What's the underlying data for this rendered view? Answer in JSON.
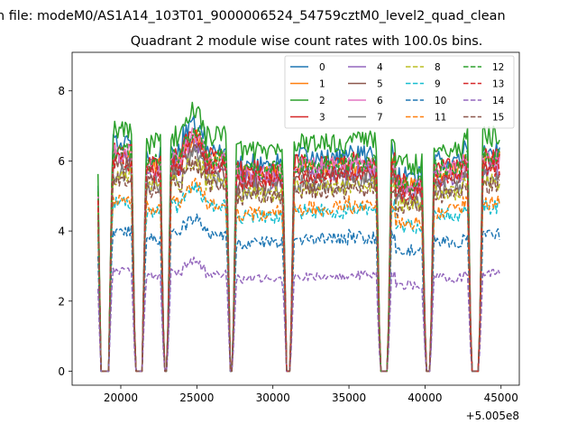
{
  "page": {
    "supertitle": "n file: modeM0/AS1A14_103T01_9000006524_54759cztM0_level2_quad_clean"
  },
  "chart_data": {
    "type": "line",
    "title": "Quadrant 2 module wise count rates with 100.0s bins.",
    "xlabel": "",
    "ylabel": "",
    "x_offset_label": "+5.005e8",
    "xlim": [
      16800,
      46200
    ],
    "ylim": [
      -0.4,
      9.1
    ],
    "x_ticks": [
      20000,
      25000,
      30000,
      35000,
      40000,
      45000
    ],
    "x_tick_labels": [
      "20000",
      "25000",
      "30000",
      "35000",
      "40000",
      "45000"
    ],
    "y_ticks": [
      0,
      2,
      4,
      6,
      8
    ],
    "y_tick_labels": [
      "0",
      "2",
      "4",
      "6",
      "8"
    ],
    "legend_position": "top-right",
    "legend_columns": 4,
    "x_start": 18500,
    "x_end": 44900,
    "bin": 100,
    "gaps": [
      [
        18700,
        19200
      ],
      [
        20950,
        21400
      ],
      [
        22850,
        23050
      ],
      [
        27200,
        27350
      ],
      [
        30900,
        31150
      ],
      [
        37050,
        37550
      ],
      [
        40050,
        40350
      ],
      [
        43050,
        43550
      ]
    ],
    "series": [
      {
        "name": "0",
        "color": "#1f77b4",
        "dash": "solid",
        "level": 6.3
      },
      {
        "name": "1",
        "color": "#ff7f0e",
        "dash": "solid",
        "level": 6.0
      },
      {
        "name": "2",
        "color": "#2ca02c",
        "dash": "solid",
        "level": 6.7
      },
      {
        "name": "3",
        "color": "#d62728",
        "dash": "solid",
        "level": 6.1
      },
      {
        "name": "4",
        "color": "#9467bd",
        "dash": "solid",
        "level": 5.8
      },
      {
        "name": "5",
        "color": "#8c564b",
        "dash": "solid",
        "level": 5.7
      },
      {
        "name": "6",
        "color": "#e377c2",
        "dash": "solid",
        "level": 6.0
      },
      {
        "name": "7",
        "color": "#7f7f7f",
        "dash": "solid",
        "level": 5.5
      },
      {
        "name": "8",
        "color": "#bcbd22",
        "dash": "dashed",
        "level": 5.4
      },
      {
        "name": "9",
        "color": "#17becf",
        "dash": "dashed",
        "level": 4.7
      },
      {
        "name": "10",
        "color": "#1f77b4",
        "dash": "dashed",
        "level": 3.9
      },
      {
        "name": "11",
        "color": "#ff7f0e",
        "dash": "dashed",
        "level": 4.8
      },
      {
        "name": "12",
        "color": "#2ca02c",
        "dash": "dashed",
        "level": 6.1
      },
      {
        "name": "13",
        "color": "#d62728",
        "dash": "dashed",
        "level": 5.8
      },
      {
        "name": "14",
        "color": "#9467bd",
        "dash": "dashed",
        "level": 2.8
      },
      {
        "name": "15",
        "color": "#8c564b",
        "dash": "dashed",
        "level": 5.3
      }
    ]
  }
}
